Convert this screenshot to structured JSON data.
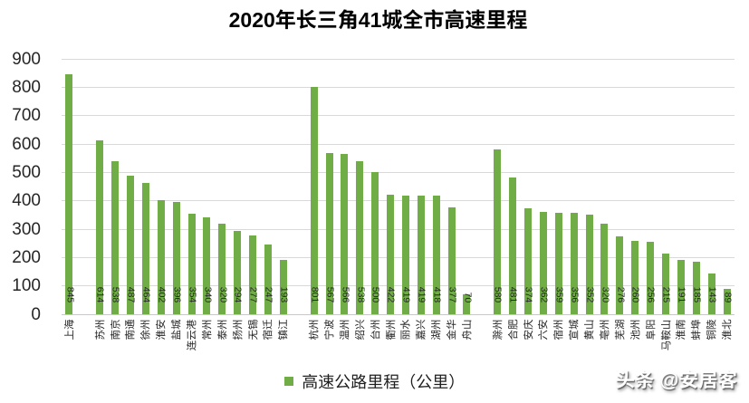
{
  "title": "2020年长三角41城全市高速里程",
  "legend": {
    "label": "高速公路里程（公里）"
  },
  "watermark": "头条 @安居客",
  "colors": {
    "bar": "#70AD47",
    "gridline": "#D9D9D9",
    "axis_line": "#C8C8C8",
    "text": "#262626",
    "title_text": "#000000",
    "watermark_text": "#FFFFFF"
  },
  "y_axis": {
    "min": 0,
    "max": 900,
    "tick_interval": 100,
    "tick_labels": [
      "0",
      "100",
      "200",
      "300",
      "400",
      "500",
      "600",
      "700",
      "800",
      "900"
    ]
  },
  "chart_data": {
    "type": "bar",
    "title": "2020年长三角41城全市高速里程",
    "series_name": "高速公路里程（公里）",
    "categories": [
      "上海",
      "苏州",
      "南京",
      "南通",
      "徐州",
      "淮安",
      "盐城",
      "连云港",
      "常州",
      "泰州",
      "扬州",
      "无锡",
      "宿迁",
      "镇江",
      "杭州",
      "宁波",
      "温州",
      "绍兴",
      "台州",
      "衢州",
      "丽水",
      "嘉兴",
      "湖州",
      "金华",
      "舟山",
      "滁州",
      "合肥",
      "安庆",
      "六安",
      "宿州",
      "宣城",
      "黄山",
      "亳州",
      "芜湖",
      "池州",
      "阜阳",
      "马鞍山",
      "淮南",
      "蚌埠",
      "铜陵",
      "淮北"
    ],
    "values": [
      845,
      614,
      538,
      487,
      464,
      402,
      396,
      354,
      340,
      320,
      294,
      277,
      247,
      193,
      801,
      567,
      566,
      538,
      500,
      422,
      419,
      419,
      418,
      377,
      70,
      580,
      481,
      374,
      362,
      359,
      356,
      352,
      320,
      276,
      260,
      256,
      215,
      191,
      185,
      143,
      89
    ],
    "ylim": [
      0,
      900
    ],
    "ytick_interval": 100,
    "grid": true,
    "legend_position": "bottom",
    "group_gaps_after_indices": [
      0,
      13,
      24
    ],
    "bar_value_labels_rotation": "rotated-90deg-reading-down",
    "category_labels_rotation": "rotated-90deg-reading-up"
  }
}
